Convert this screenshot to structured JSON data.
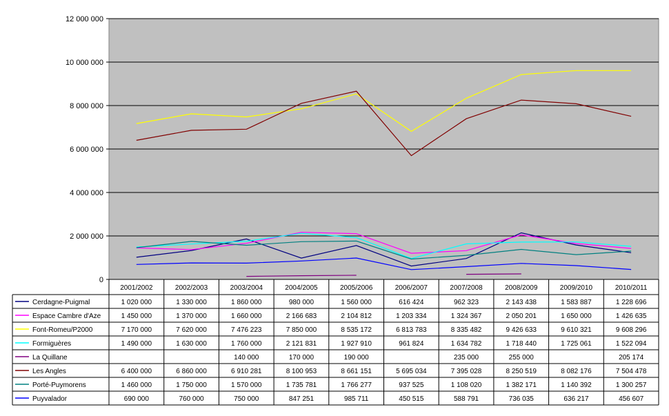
{
  "chart_data": {
    "type": "line",
    "categories": [
      "2001/2002",
      "2002/2003",
      "2003/2004",
      "2004/2005",
      "2005/2006",
      "2006/2007",
      "2007/2008",
      "2008/2009",
      "2009/2010",
      "2010/2011"
    ],
    "ylim": [
      0,
      12000000
    ],
    "yticks": [
      0,
      2000000,
      4000000,
      6000000,
      8000000,
      10000000,
      12000000
    ],
    "ytick_labels": [
      "0",
      "2 000 000",
      "4 000 000",
      "6 000 000",
      "8 000 000",
      "10 000 000",
      "12 000 000"
    ],
    "grid": true,
    "legend": "data-table-below",
    "plot_background": "#c0c0c0",
    "series": [
      {
        "name": "Cerdagne-Puigmal",
        "color": "#000080",
        "values": [
          1020000,
          1330000,
          1860000,
          980000,
          1560000,
          616424,
          962323,
          2143438,
          1583887,
          1228696
        ],
        "labels": [
          "1 020 000",
          "1 330 000",
          "1 860 000",
          "980 000",
          "1 560 000",
          "616 424",
          "962 323",
          "2 143 438",
          "1 583 887",
          "1 228 696"
        ]
      },
      {
        "name": "Espace Cambre d'Aze",
        "color": "#ff00ff",
        "values": [
          1450000,
          1370000,
          1660000,
          2166683,
          2104812,
          1203334,
          1324367,
          2050201,
          1650000,
          1426635
        ],
        "labels": [
          "1 450 000",
          "1 370 000",
          "1 660 000",
          "2 166 683",
          "2 104 812",
          "1 203 334",
          "1 324 367",
          "2 050 201",
          "1 650 000",
          "1 426 635"
        ]
      },
      {
        "name": "Font-Romeu/P2000",
        "color": "#ffff00",
        "values": [
          7170000,
          7620000,
          7476223,
          7850000,
          8535172,
          6813783,
          8335482,
          9426633,
          9610321,
          9608296
        ],
        "labels": [
          "7 170 000",
          "7 620 000",
          "7 476 223",
          "7 850 000",
          "8 535 172",
          "6 813 783",
          "8 335 482",
          "9 426 633",
          "9 610 321",
          "9 608 296"
        ]
      },
      {
        "name": "Formiguères",
        "color": "#00ffff",
        "values": [
          1490000,
          1630000,
          1760000,
          2121831,
          1927910,
          961824,
          1634782,
          1718440,
          1725061,
          1522094
        ],
        "labels": [
          "1 490 000",
          "1 630 000",
          "1 760 000",
          "2 121 831",
          "1 927 910",
          "961 824",
          "1 634 782",
          "1 718 440",
          "1 725 061",
          "1 522 094"
        ]
      },
      {
        "name": "La Quillane",
        "color": "#800080",
        "values": [
          null,
          null,
          140000,
          170000,
          190000,
          null,
          235000,
          255000,
          null,
          205174
        ],
        "labels": [
          "",
          "",
          "140 000",
          "170 000",
          "190 000",
          "",
          "235 000",
          "255 000",
          "",
          "205 174"
        ]
      },
      {
        "name": "Les Angles",
        "color": "#800000",
        "values": [
          6400000,
          6860000,
          6910281,
          8100953,
          8661151,
          5695034,
          7395028,
          8250519,
          8082176,
          7504478
        ],
        "labels": [
          "6 400 000",
          "6 860 000",
          "6 910 281",
          "8 100 953",
          "8 661 151",
          "5 695 034",
          "7 395 028",
          "8 250 519",
          "8 082 176",
          "7 504 478"
        ]
      },
      {
        "name": "Porté-Puymorens",
        "color": "#008080",
        "values": [
          1460000,
          1750000,
          1570000,
          1735781,
          1766277,
          937525,
          1108020,
          1382171,
          1140392,
          1300257
        ],
        "labels": [
          "1 460 000",
          "1 750 000",
          "1 570 000",
          "1 735 781",
          "1 766 277",
          "937 525",
          "1 108 020",
          "1 382 171",
          "1 140 392",
          "1 300 257"
        ]
      },
      {
        "name": "Puyvalador",
        "color": "#0000ff",
        "values": [
          690000,
          760000,
          750000,
          847251,
          985711,
          450515,
          588791,
          736035,
          636217,
          456607
        ],
        "labels": [
          "690 000",
          "760 000",
          "750 000",
          "847 251",
          "985 711",
          "450 515",
          "588 791",
          "736 035",
          "636 217",
          "456 607"
        ]
      }
    ]
  }
}
